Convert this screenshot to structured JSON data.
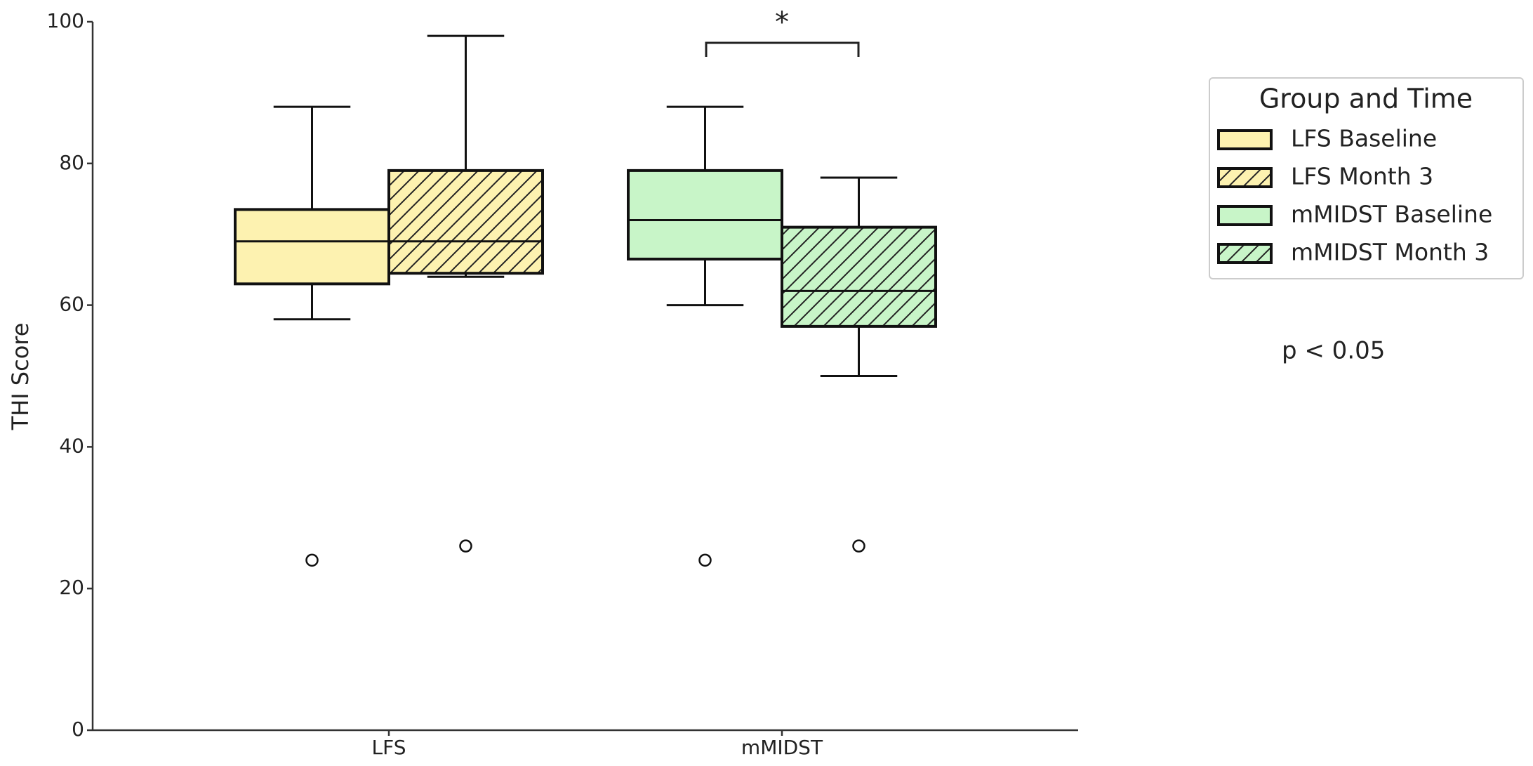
{
  "chart_data": {
    "type": "box",
    "y_label": "THI Score",
    "categories": [
      "LFS",
      "mMIDST"
    ],
    "ylim": [
      0,
      100
    ],
    "yticks": [
      0,
      20,
      40,
      60,
      80,
      100
    ],
    "legend_title": "Group and Time",
    "series": [
      {
        "name": "LFS Baseline",
        "category": "LFS",
        "color": "#fdf2b0",
        "hatch": false,
        "whislo": 58,
        "q1": 63,
        "med": 69,
        "q3": 73.5,
        "whishi": 88,
        "fliers": [
          24
        ]
      },
      {
        "name": "LFS Month 3",
        "category": "LFS",
        "color": "#fdf2b0",
        "hatch": true,
        "whislo": 64,
        "q1": 64.5,
        "med": 69,
        "q3": 79,
        "whishi": 98,
        "fliers": [
          26
        ]
      },
      {
        "name": "mMIDST Baseline",
        "category": "mMIDST",
        "color": "#c8f5c8",
        "hatch": false,
        "whislo": 60,
        "q1": 66.5,
        "med": 72,
        "q3": 79,
        "whishi": 88,
        "fliers": [
          24
        ]
      },
      {
        "name": "mMIDST Month 3",
        "category": "mMIDST",
        "color": "#c8f5c8",
        "hatch": true,
        "whislo": 50,
        "q1": 57,
        "med": 62,
        "q3": 71,
        "whishi": 78,
        "fliers": [
          26
        ]
      }
    ],
    "significance_marker": "*",
    "annotation": "p < 0.05"
  }
}
